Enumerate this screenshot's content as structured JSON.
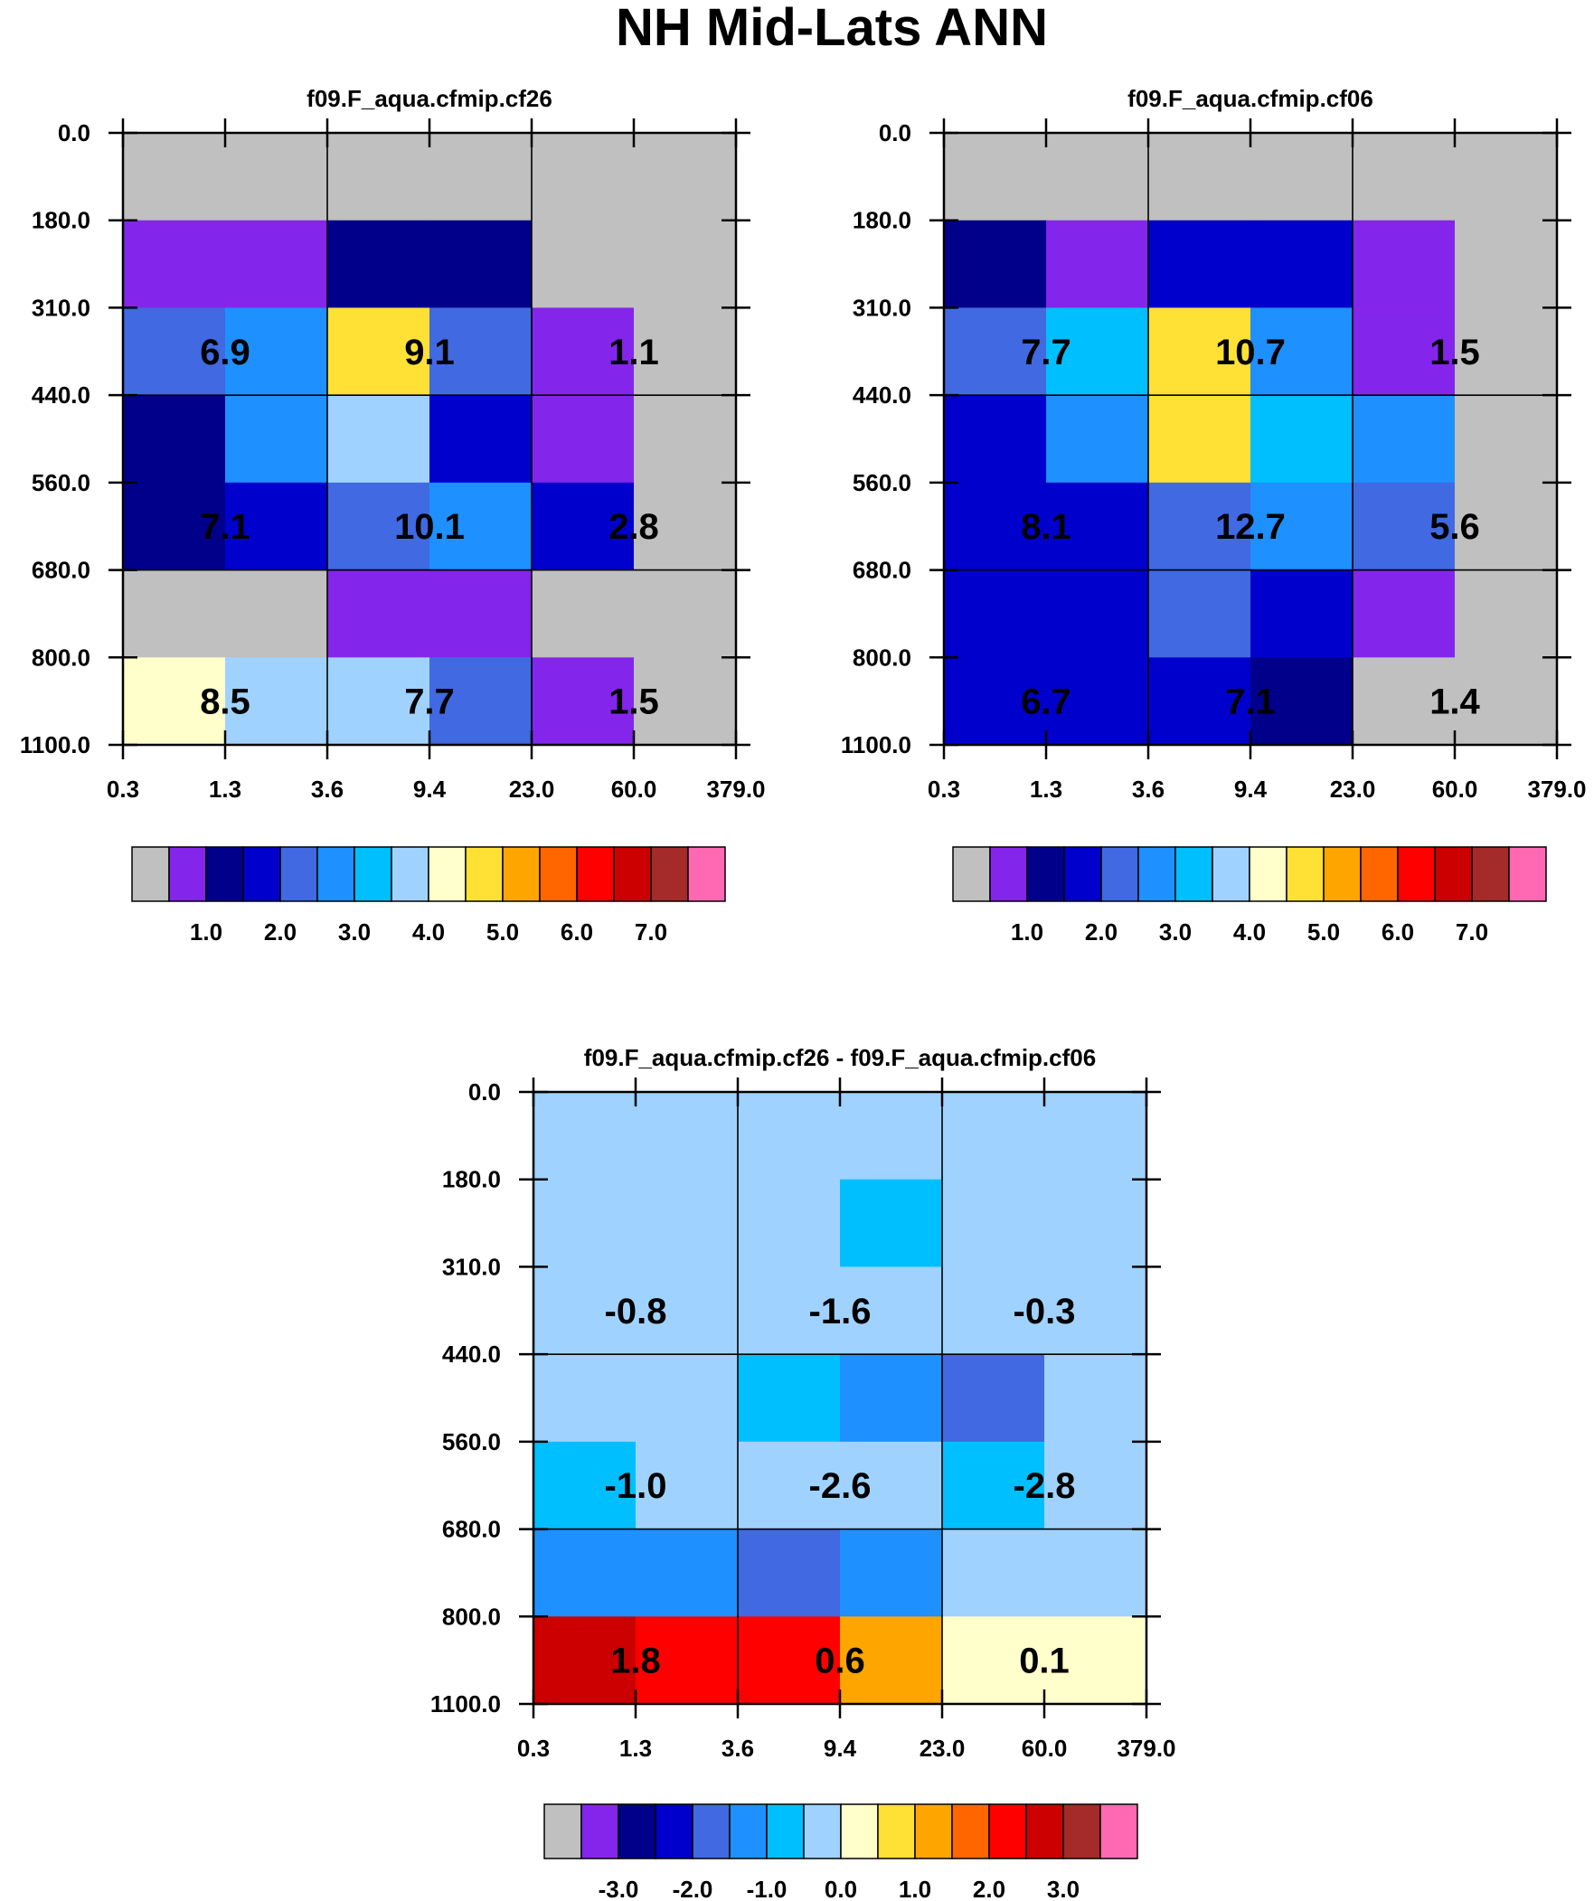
{
  "title": "NH Mid-Lats ANN",
  "colors": {
    "main": [
      "#c0c0c0",
      "#8425eb",
      "#00008b",
      "#0000cd",
      "#4169e1",
      "#1e90ff",
      "#00bfff",
      "#a0d2ff",
      "#ffffcc",
      "#ffe135",
      "#ffa500",
      "#ff6600",
      "#ff0000",
      "#cc0000",
      "#a52a2a",
      "#ff69b4"
    ],
    "diff": [
      "#c0c0c0",
      "#8425eb",
      "#00008b",
      "#0000cd",
      "#4169e1",
      "#1e90ff",
      "#00bfff",
      "#a0d2ff",
      "#ffffcc",
      "#ffe135",
      "#ffa500",
      "#ff6600",
      "#ff0000",
      "#cc0000",
      "#a52a2a",
      "#ff69b4"
    ]
  },
  "chart_data": [
    {
      "type": "heatmap",
      "title": "f09.F_aqua.cfmip.cf26",
      "x_ticks": [
        "0.3",
        "1.3",
        "3.6",
        "9.4",
        "23.0",
        "60.0",
        "379.0"
      ],
      "y_ticks": [
        "0.0",
        "180.0",
        "310.0",
        "440.0",
        "560.0",
        "680.0",
        "800.0",
        "1100.0"
      ],
      "cell_colors": [
        [
          0,
          0,
          0,
          0,
          0,
          0
        ],
        [
          1,
          1,
          2,
          2,
          0,
          0
        ],
        [
          4,
          5,
          9,
          4,
          1,
          0
        ],
        [
          2,
          5,
          7,
          3,
          1,
          0
        ],
        [
          2,
          3,
          4,
          5,
          3,
          0
        ],
        [
          0,
          0,
          1,
          1,
          0,
          0
        ],
        [
          8,
          7,
          7,
          4,
          1,
          0
        ]
      ],
      "box_values": [
        [
          "6.9",
          "9.1",
          "1.1"
        ],
        [
          "7.1",
          "10.1",
          "2.8"
        ],
        [
          "8.5",
          "7.7",
          "1.5"
        ]
      ],
      "colorbar": {
        "labels": [
          "1.0",
          "2.0",
          "3.0",
          "4.0",
          "5.0",
          "6.0",
          "7.0"
        ],
        "colors_key": "main"
      }
    },
    {
      "type": "heatmap",
      "title": "f09.F_aqua.cfmip.cf06",
      "x_ticks": [
        "0.3",
        "1.3",
        "3.6",
        "9.4",
        "23.0",
        "60.0",
        "379.0"
      ],
      "y_ticks": [
        "0.0",
        "180.0",
        "310.0",
        "440.0",
        "560.0",
        "680.0",
        "800.0",
        "1100.0"
      ],
      "cell_colors": [
        [
          0,
          0,
          0,
          0,
          0,
          0
        ],
        [
          2,
          1,
          3,
          3,
          1,
          0
        ],
        [
          4,
          6,
          9,
          5,
          1,
          0
        ],
        [
          3,
          5,
          9,
          6,
          5,
          0
        ],
        [
          3,
          3,
          4,
          5,
          4,
          0
        ],
        [
          3,
          3,
          4,
          3,
          1,
          0
        ],
        [
          3,
          3,
          3,
          2,
          0,
          0
        ]
      ],
      "box_values": [
        [
          "7.7",
          "10.7",
          "1.5"
        ],
        [
          "8.1",
          "12.7",
          "5.6"
        ],
        [
          "6.7",
          "7.1",
          "1.4"
        ]
      ],
      "colorbar": {
        "labels": [
          "1.0",
          "2.0",
          "3.0",
          "4.0",
          "5.0",
          "6.0",
          "7.0"
        ],
        "colors_key": "main"
      }
    },
    {
      "type": "heatmap",
      "title": "f09.F_aqua.cfmip.cf26 - f09.F_aqua.cfmip.cf06",
      "x_ticks": [
        "0.3",
        "1.3",
        "3.6",
        "9.4",
        "23.0",
        "60.0",
        "379.0"
      ],
      "y_ticks": [
        "0.0",
        "180.0",
        "310.0",
        "440.0",
        "560.0",
        "680.0",
        "800.0",
        "1100.0"
      ],
      "cell_colors": [
        [
          7,
          7,
          7,
          7,
          7,
          7
        ],
        [
          7,
          7,
          7,
          6,
          7,
          7
        ],
        [
          7,
          7,
          7,
          7,
          7,
          7
        ],
        [
          7,
          7,
          6,
          5,
          4,
          7
        ],
        [
          6,
          7,
          7,
          7,
          6,
          7
        ],
        [
          5,
          5,
          4,
          5,
          7,
          7
        ],
        [
          13,
          12,
          12,
          10,
          8,
          8
        ]
      ],
      "box_values": [
        [
          "-0.8",
          "-1.6",
          "-0.3"
        ],
        [
          "-1.0",
          "-2.6",
          "-2.8"
        ],
        [
          "1.8",
          "0.6",
          "0.1"
        ]
      ],
      "colorbar": {
        "labels": [
          "-3.0",
          "-2.0",
          "-1.0",
          "0.0",
          "1.0",
          "2.0",
          "3.0"
        ],
        "colors_key": "diff"
      }
    }
  ]
}
